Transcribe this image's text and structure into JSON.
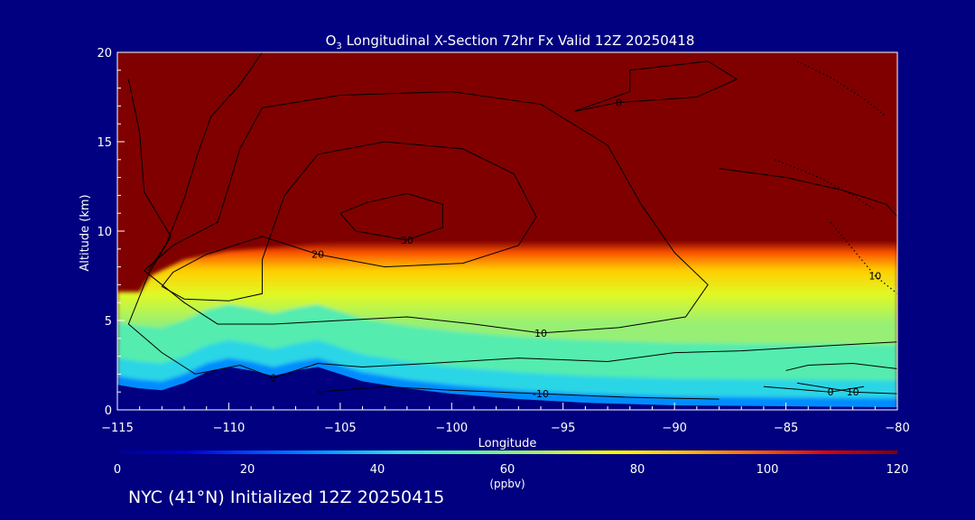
{
  "footer": {
    "initialized_label": "NYC (41°N) Initialized 12Z 20250415"
  },
  "chart_data": {
    "type": "heatmap",
    "title_parts": [
      "O",
      "3",
      " Longitudinal X-Section 72hr  Fx Valid 12Z 20250418"
    ],
    "xlabel": "Longitude",
    "ylabel": "Altitude (km)",
    "xlim": [
      -115,
      -80
    ],
    "ylim": [
      0,
      20
    ],
    "xticks": [
      -115,
      -110,
      -105,
      -100,
      -95,
      -90,
      -85,
      -80
    ],
    "xtick_labels": [
      "−115",
      "−110",
      "−105",
      "−100",
      "−95",
      "−90",
      "−85",
      "−80"
    ],
    "yticks": [
      0,
      5,
      10,
      15,
      20
    ],
    "ytick_labels": [
      "0",
      "5",
      "10",
      "15",
      "20"
    ],
    "colorbar": {
      "range": [
        0,
        120
      ],
      "ticks": [
        0,
        20,
        40,
        60,
        80,
        100,
        120
      ],
      "tick_labels": [
        "0",
        "20",
        "40",
        "60",
        "80",
        "100",
        "120"
      ],
      "unit_label": "(ppbv)",
      "colormap": [
        "#000090",
        "#0000d0",
        "#0050ff",
        "#00a0ff",
        "#30e0e0",
        "#60f0a0",
        "#b0f060",
        "#ffff00",
        "#ffc000",
        "#ff6000",
        "#e00000",
        "#800000"
      ]
    },
    "terrain_km": [
      {
        "lon": -115.0,
        "alt": 1.4
      },
      {
        "lon": -114.0,
        "alt": 1.2
      },
      {
        "lon": -113.0,
        "alt": 1.1
      },
      {
        "lon": -112.0,
        "alt": 1.5
      },
      {
        "lon": -111.0,
        "alt": 2.1
      },
      {
        "lon": -110.0,
        "alt": 2.4
      },
      {
        "lon": -109.0,
        "alt": 2.2
      },
      {
        "lon": -108.0,
        "alt": 1.9
      },
      {
        "lon": -107.0,
        "alt": 2.2
      },
      {
        "lon": -106.0,
        "alt": 2.4
      },
      {
        "lon": -105.0,
        "alt": 2.0
      },
      {
        "lon": -104.0,
        "alt": 1.6
      },
      {
        "lon": -102.0,
        "alt": 1.2
      },
      {
        "lon": -100.0,
        "alt": 0.9
      },
      {
        "lon": -97.0,
        "alt": 0.6
      },
      {
        "lon": -94.0,
        "alt": 0.4
      },
      {
        "lon": -90.0,
        "alt": 0.25
      },
      {
        "lon": -85.0,
        "alt": 0.2
      },
      {
        "lon": -80.0,
        "alt": 0.15
      }
    ],
    "tropopause_km": [
      {
        "lon": -115.0,
        "alt": 6.6
      },
      {
        "lon": -114.0,
        "alt": 6.6
      },
      {
        "lon": -113.5,
        "alt": 7.5
      },
      {
        "lon": -112.0,
        "alt": 8.4
      },
      {
        "lon": -110.0,
        "alt": 8.9
      },
      {
        "lon": -107.0,
        "alt": 9.2
      },
      {
        "lon": -104.0,
        "alt": 9.6
      },
      {
        "lon": -101.0,
        "alt": 10.1
      },
      {
        "lon": -98.0,
        "alt": 10.7
      },
      {
        "lon": -95.0,
        "alt": 11.0
      },
      {
        "lon": -90.0,
        "alt": 11.2
      },
      {
        "lon": -85.0,
        "alt": 11.3
      },
      {
        "lon": -80.0,
        "alt": 11.4
      }
    ],
    "tropo_gradient_ppbv": [
      120,
      100,
      85,
      72,
      62
    ],
    "tropo_gradient_offsets_km": [
      0,
      0.6,
      1.6,
      3.0,
      4.6
    ],
    "low_layers": [
      {
        "ppbv": 52,
        "offset_km": 3.5
      },
      {
        "ppbv": 42,
        "offset_km": 1.5
      },
      {
        "ppbv": 30,
        "offset_km": 0.5
      }
    ],
    "contours": [
      {
        "label": "30",
        "points": [
          [
            -103.8,
            11.6
          ],
          [
            -102.0,
            12.1
          ],
          [
            -100.4,
            11.5
          ],
          [
            -100.4,
            10.2
          ],
          [
            -102.0,
            9.5
          ],
          [
            -104.3,
            10.0
          ],
          [
            -105.0,
            11.0
          ],
          [
            -103.8,
            11.6
          ]
        ]
      },
      {
        "label": "20",
        "points": [
          [
            -107.5,
            12.0
          ],
          [
            -106.0,
            14.3
          ],
          [
            -103.0,
            15.0
          ],
          [
            -99.5,
            14.6
          ],
          [
            -97.2,
            13.2
          ],
          [
            -96.2,
            10.8
          ],
          [
            -97.0,
            9.2
          ],
          [
            -99.5,
            8.2
          ],
          [
            -103.0,
            8.0
          ],
          [
            -106.0,
            8.7
          ],
          [
            -108.5,
            9.7
          ],
          [
            -111.0,
            8.7
          ],
          [
            -112.5,
            7.7
          ],
          [
            -113.0,
            6.9
          ],
          [
            -112.0,
            6.2
          ],
          [
            -110.0,
            6.1
          ],
          [
            -108.5,
            6.5
          ],
          [
            -108.5,
            8.4
          ],
          [
            -107.5,
            12.0
          ]
        ]
      },
      {
        "label": "10",
        "points": [
          [
            -109.5,
            14.6
          ],
          [
            -108.5,
            16.9
          ],
          [
            -105.0,
            17.6
          ],
          [
            -100.0,
            17.8
          ],
          [
            -96.0,
            17.1
          ],
          [
            -93.0,
            14.8
          ],
          [
            -91.5,
            11.5
          ],
          [
            -90.0,
            8.8
          ],
          [
            -88.5,
            7.0
          ],
          [
            -89.5,
            5.2
          ],
          [
            -92.5,
            4.6
          ],
          [
            -96.0,
            4.3
          ],
          [
            -99.0,
            4.8
          ],
          [
            -102.0,
            5.2
          ],
          [
            -105.0,
            5.0
          ],
          [
            -108.0,
            4.8
          ],
          [
            -110.5,
            4.8
          ],
          [
            -112.0,
            6.0
          ],
          [
            -113.8,
            7.8
          ],
          [
            -112.5,
            9.2
          ],
          [
            -110.5,
            10.5
          ],
          [
            -110.0,
            12.5
          ],
          [
            -109.5,
            14.6
          ]
        ]
      },
      {
        "label": "0",
        "points": [
          [
            -114.5,
            18.5
          ],
          [
            -114.0,
            15.5
          ],
          [
            -113.8,
            12.2
          ],
          [
            -112.6,
            9.7
          ],
          [
            -113.6,
            7.6
          ],
          [
            -114.5,
            4.8
          ],
          [
            -113.0,
            3.2
          ],
          [
            -111.5,
            2.0
          ],
          [
            -109.5,
            2.5
          ],
          [
            -108.0,
            1.8
          ],
          [
            -106.0,
            2.6
          ],
          [
            -104.0,
            2.4
          ],
          [
            -101.0,
            2.6
          ],
          [
            -97.0,
            2.9
          ],
          [
            -93.0,
            2.7
          ],
          [
            -90.0,
            3.2
          ],
          [
            -87.0,
            3.3
          ],
          [
            -83.0,
            3.6
          ],
          [
            -80.0,
            3.8
          ]
        ]
      },
      {
        "label": "",
        "points": [
          [
            -108.5,
            20.0
          ],
          [
            -109.5,
            18.2
          ],
          [
            -110.8,
            16.4
          ],
          [
            -111.4,
            14.3
          ],
          [
            -112.0,
            11.8
          ],
          [
            -112.8,
            9.3
          ],
          [
            -113.6,
            7.8
          ]
        ]
      },
      {
        "label": "",
        "points": [
          [
            -85.0,
            2.2
          ],
          [
            -84.0,
            2.5
          ],
          [
            -82.0,
            2.6
          ],
          [
            -80.0,
            2.3
          ]
        ]
      },
      {
        "label": "-10",
        "points": [
          [
            -106.0,
            1.0
          ],
          [
            -103.0,
            1.3
          ],
          [
            -100.0,
            1.1
          ],
          [
            -96.0,
            0.9
          ],
          [
            -92.0,
            0.7
          ],
          [
            -88.0,
            0.6
          ]
        ]
      },
      {
        "label": "10",
        "points": [
          [
            -84.5,
            1.5
          ],
          [
            -82.0,
            1.0
          ],
          [
            -80.0,
            0.9
          ]
        ]
      },
      {
        "label": "0",
        "points": [
          [
            -86.0,
            1.3
          ],
          [
            -83.0,
            1.0
          ],
          [
            -81.5,
            1.3
          ]
        ]
      },
      {
        "label": "0",
        "points": [
          [
            -92.0,
            19.0
          ],
          [
            -88.5,
            19.5
          ],
          [
            -87.2,
            18.5
          ],
          [
            -89.0,
            17.5
          ],
          [
            -92.5,
            17.2
          ],
          [
            -94.5,
            16.7
          ],
          [
            -92.0,
            17.8
          ],
          [
            -92.0,
            19.0
          ]
        ]
      },
      {
        "label": "",
        "points": [
          [
            -88.0,
            13.5
          ],
          [
            -85.0,
            13.0
          ],
          [
            -82.5,
            12.3
          ],
          [
            -80.5,
            11.5
          ],
          [
            -80.0,
            10.8
          ]
        ]
      }
    ],
    "dotted_contours": [
      {
        "label": "",
        "points": [
          [
            -84.5,
            19.5
          ],
          [
            -83.0,
            18.6
          ],
          [
            -81.5,
            17.4
          ],
          [
            -80.5,
            16.4
          ]
        ]
      },
      {
        "label": "",
        "points": [
          [
            -85.5,
            14.0
          ],
          [
            -83.5,
            13.0
          ],
          [
            -82.0,
            12.0
          ],
          [
            -81.0,
            11.2
          ]
        ]
      },
      {
        "label": "10",
        "points": [
          [
            -83.0,
            10.5
          ],
          [
            -82.0,
            9.0
          ],
          [
            -81.0,
            7.5
          ],
          [
            -80.0,
            6.5
          ]
        ]
      }
    ]
  }
}
